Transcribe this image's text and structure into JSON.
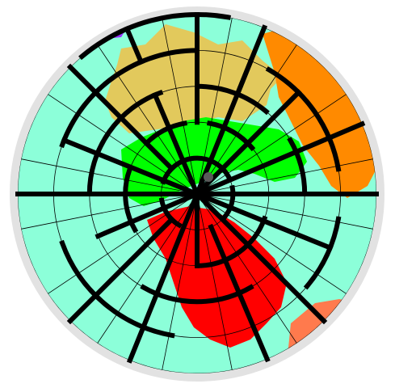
{
  "game": {
    "type": "polar-maze",
    "rings": 5,
    "sectors_per_ring": 16
  },
  "colors": {
    "board_frame": "#e2e2e2",
    "ocean": "#8cffd9",
    "grid_line": "#000000",
    "maze_wall": "#000000",
    "player_marker": "#5a5a5a",
    "continent_europe": "#e2c95c",
    "continent_asia": "#ff8a00",
    "continent_arctic": "#00ff00",
    "continent_north_america": "#ff0000",
    "continent_south_america": "#ff7a4d",
    "continent_africa": "#9b30ff"
  },
  "icons": {
    "player": "circle-marker-icon",
    "center": "maze-center-icon"
  }
}
